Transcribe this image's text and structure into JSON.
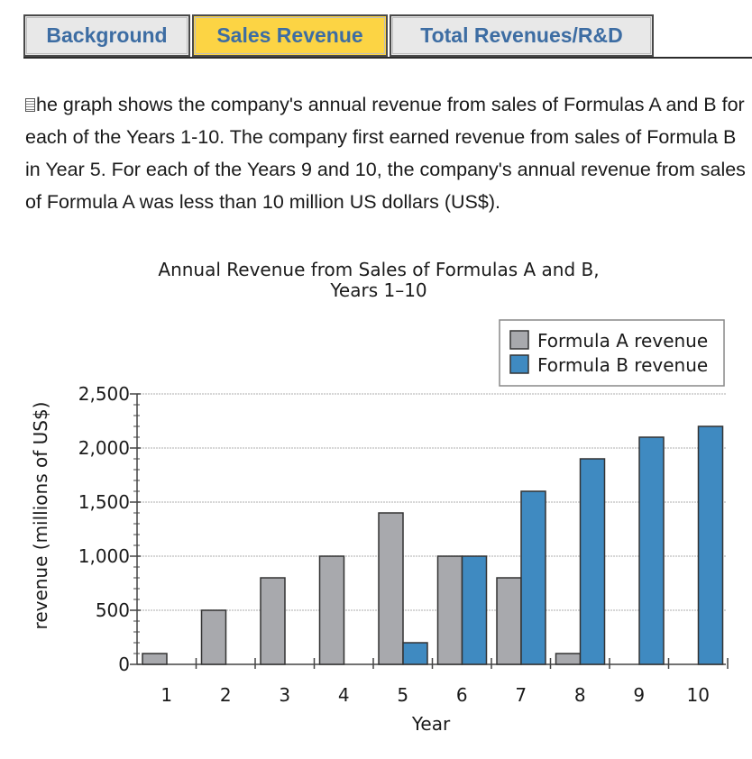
{
  "tabs": [
    {
      "label": "Background",
      "active": false
    },
    {
      "label": "Sales Revenue",
      "active": true
    },
    {
      "label": "Total Revenues/R&D",
      "active": false
    }
  ],
  "description": "he graph shows the company's annual revenue from sales of Formulas A and B for each of the Years 1-10. The company first earned revenue from sales of Formula B in Year 5. For each of the Years 9 and 10, the company's annual revenue from sales of Formula A was less than 10 million US dollars (US$).",
  "colors": {
    "formula_a": "#a8a9ad",
    "formula_b": "#3f8ac1",
    "tab_active": "#fcd444",
    "tab_text": "#3d6da3"
  },
  "chart_data": {
    "type": "bar",
    "title_line1": "Annual Revenue from Sales of Formulas A and B,",
    "title_line2": "Years 1–10",
    "xlabel": "Year",
    "ylabel": "revenue (millions of US$)",
    "categories": [
      "1",
      "2",
      "3",
      "4",
      "5",
      "6",
      "7",
      "8",
      "9",
      "10"
    ],
    "series": [
      {
        "name": "Formula A revenue",
        "values": [
          100,
          500,
          800,
          1000,
          1400,
          1000,
          800,
          100,
          0,
          0
        ]
      },
      {
        "name": "Formula B revenue",
        "values": [
          0,
          0,
          0,
          0,
          200,
          1000,
          1600,
          1900,
          2100,
          2200
        ]
      }
    ],
    "ylim": [
      0,
      2500
    ],
    "yticks": [
      {
        "value": 0,
        "label": "0"
      },
      {
        "value": 500,
        "label": "500"
      },
      {
        "value": 1000,
        "label": "1,000"
      },
      {
        "value": 1500,
        "label": "1,500"
      },
      {
        "value": 2000,
        "label": "2,000"
      },
      {
        "value": 2500,
        "label": "2,500"
      }
    ],
    "grid": true,
    "legend_position": "top-right"
  }
}
